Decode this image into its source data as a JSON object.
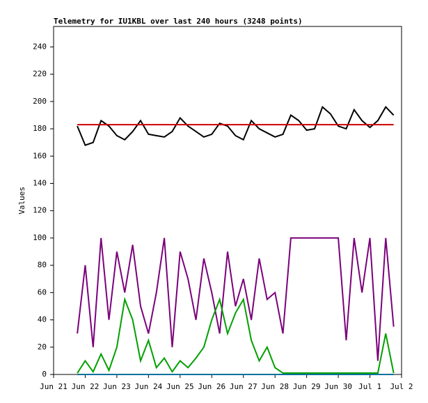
{
  "chart_data": {
    "type": "line",
    "title": "Telemetry for IU1KBL over last 240 hours (3248 points)",
    "y_label": "Values",
    "xlim": [
      0,
      11
    ],
    "xticks": [
      {
        "value": 0,
        "label": "Jun 21"
      },
      {
        "value": 1,
        "label": "Jun 22"
      },
      {
        "value": 2,
        "label": "Jun 23"
      },
      {
        "value": 3,
        "label": "Jun 24"
      },
      {
        "value": 4,
        "label": "Jun 25"
      },
      {
        "value": 5,
        "label": "Jun 26"
      },
      {
        "value": 6,
        "label": "Jun 27"
      },
      {
        "value": 7,
        "label": "Jun 28"
      },
      {
        "value": 8,
        "label": "Jun 29"
      },
      {
        "value": 9,
        "label": "Jun 30"
      },
      {
        "value": 10,
        "label": "Jul 1"
      },
      {
        "value": 11,
        "label": "Jul 2"
      }
    ],
    "ylim": [
      0,
      255
    ],
    "yticks": [
      0,
      20,
      40,
      60,
      80,
      100,
      120,
      140,
      160,
      180,
      200,
      220,
      240
    ],
    "x": [
      0.75,
      1,
      1.25,
      1.5,
      1.75,
      2,
      2.25,
      2.5,
      2.75,
      3,
      3.25,
      3.5,
      3.75,
      4,
      4.25,
      4.5,
      4.75,
      5,
      5.25,
      5.5,
      5.75,
      6,
      6.25,
      6.5,
      6.75,
      7,
      7.25,
      7.5,
      7.75,
      8,
      8.25,
      8.5,
      8.75,
      9,
      9.25,
      9.5,
      9.75,
      10,
      10.25,
      10.5,
      10.75
    ],
    "series": [
      {
        "color": "#7b007b",
        "values": [
          30,
          80,
          20,
          100,
          40,
          90,
          60,
          95,
          50,
          30,
          60,
          100,
          20,
          90,
          70,
          40,
          85,
          60,
          30,
          90,
          50,
          70,
          40,
          85,
          55,
          60,
          30,
          100,
          100,
          100,
          100,
          100,
          100,
          100,
          25,
          100,
          60,
          100,
          10,
          100,
          35
        ]
      },
      {
        "color": "#00a000",
        "values": [
          1,
          10,
          2,
          15,
          3,
          20,
          55,
          40,
          10,
          25,
          5,
          12,
          2,
          10,
          5,
          12,
          20,
          40,
          55,
          30,
          45,
          55,
          25,
          10,
          20,
          5,
          1,
          1,
          1,
          1,
          1,
          1,
          1,
          1,
          1,
          1,
          1,
          1,
          1,
          30,
          1
        ]
      },
      {
        "color": "#0070a0",
        "values": [
          0,
          0,
          0,
          0,
          0,
          0,
          0,
          0,
          0,
          0,
          0,
          0,
          0,
          0,
          0,
          0,
          0,
          0,
          0,
          0,
          0,
          0,
          0,
          0,
          0,
          0,
          0,
          0,
          0,
          0,
          0,
          0,
          0,
          0,
          0,
          0,
          0,
          0,
          0,
          0,
          0
        ]
      },
      {
        "color": "#000000",
        "values": [
          182,
          168,
          170,
          186,
          182,
          175,
          172,
          178,
          186,
          176,
          175,
          174,
          178,
          188,
          182,
          178,
          174,
          176,
          184,
          182,
          175,
          172,
          186,
          180,
          177,
          174,
          176,
          190,
          186,
          179,
          180,
          196,
          191,
          182,
          180,
          194,
          186,
          181,
          186,
          196,
          190
        ]
      },
      {
        "color": "#d00000",
        "values": [
          183,
          183,
          183,
          183,
          183,
          183,
          183,
          183,
          183,
          183,
          183,
          183,
          183,
          183,
          183,
          183,
          183,
          183,
          183,
          183,
          183,
          183,
          183,
          183,
          183,
          183,
          183,
          183,
          183,
          183,
          183,
          183,
          183,
          183,
          183,
          183,
          183,
          183,
          183,
          183,
          183
        ]
      }
    ]
  }
}
